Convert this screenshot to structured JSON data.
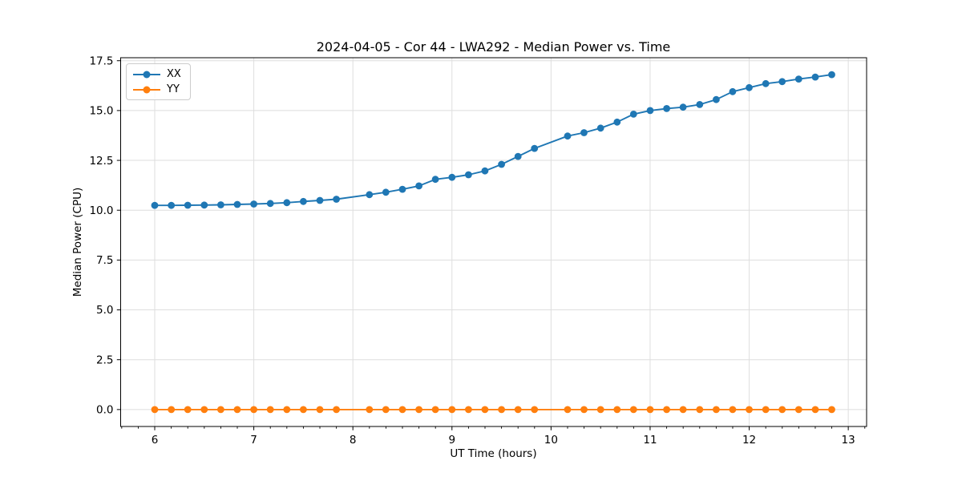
{
  "chart_data": {
    "type": "line",
    "title": "2024-04-05 - Cor 44 - LWA292 - Median Power vs. Time",
    "xlabel": "UT Time (hours)",
    "ylabel": "Median Power (CPU)",
    "xlim": [
      5.656,
      13.185
    ],
    "ylim": [
      -0.85,
      17.65
    ],
    "x_ticks": [
      6,
      7,
      8,
      9,
      10,
      11,
      12,
      13
    ],
    "x_tick_labels": [
      "6",
      "7",
      "8",
      "9",
      "10",
      "11",
      "12",
      "13"
    ],
    "x_minor_tick_step": 0.16667,
    "y_ticks": [
      0.0,
      2.5,
      5.0,
      7.5,
      10.0,
      12.5,
      15.0,
      17.5
    ],
    "y_tick_labels": [
      "0.0",
      "2.5",
      "5.0",
      "7.5",
      "10.0",
      "12.5",
      "15.0",
      "17.5"
    ],
    "grid": true,
    "legend_position": "upper left",
    "x": [
      6.0,
      6.167,
      6.333,
      6.5,
      6.667,
      6.833,
      7.0,
      7.167,
      7.333,
      7.5,
      7.667,
      7.833,
      8.167,
      8.333,
      8.5,
      8.667,
      8.833,
      9.0,
      9.167,
      9.333,
      9.5,
      9.667,
      9.833,
      10.167,
      10.333,
      10.5,
      10.667,
      10.833,
      11.0,
      11.167,
      11.333,
      11.5,
      11.667,
      11.833,
      12.0,
      12.167,
      12.333,
      12.5,
      12.667,
      12.833
    ],
    "missing_samples": [
      8.0,
      10.0
    ],
    "series": [
      {
        "name": "XX",
        "color": "#1f77b4",
        "values": [
          10.24,
          10.24,
          10.25,
          10.26,
          10.27,
          10.29,
          10.31,
          10.34,
          10.38,
          10.44,
          10.49,
          10.55,
          10.78,
          10.9,
          11.05,
          11.22,
          11.55,
          11.65,
          11.78,
          11.97,
          12.3,
          12.7,
          13.1,
          13.72,
          13.89,
          14.12,
          14.42,
          14.82,
          15.0,
          15.1,
          15.17,
          15.3,
          15.55,
          15.95,
          16.15,
          16.35,
          16.45,
          16.58,
          16.68,
          16.8
        ]
      },
      {
        "name": "YY",
        "color": "#ff7f0e",
        "values": [
          0.0,
          0.0,
          0.0,
          0.0,
          0.0,
          0.0,
          0.0,
          0.0,
          0.0,
          0.0,
          0.0,
          0.0,
          0.0,
          0.0,
          0.0,
          0.0,
          0.0,
          0.0,
          0.0,
          0.0,
          0.0,
          0.0,
          0.0,
          0.0,
          0.0,
          0.0,
          0.0,
          0.0,
          0.0,
          0.0,
          0.0,
          0.0,
          0.0,
          0.0,
          0.0,
          0.0,
          0.0,
          0.0,
          0.0,
          0.0
        ]
      }
    ],
    "style": {
      "grid_color": "#dedede",
      "spine_color": "#000000",
      "background": "#ffffff",
      "marker_radius": 4.4,
      "line_width": 1.9
    }
  }
}
